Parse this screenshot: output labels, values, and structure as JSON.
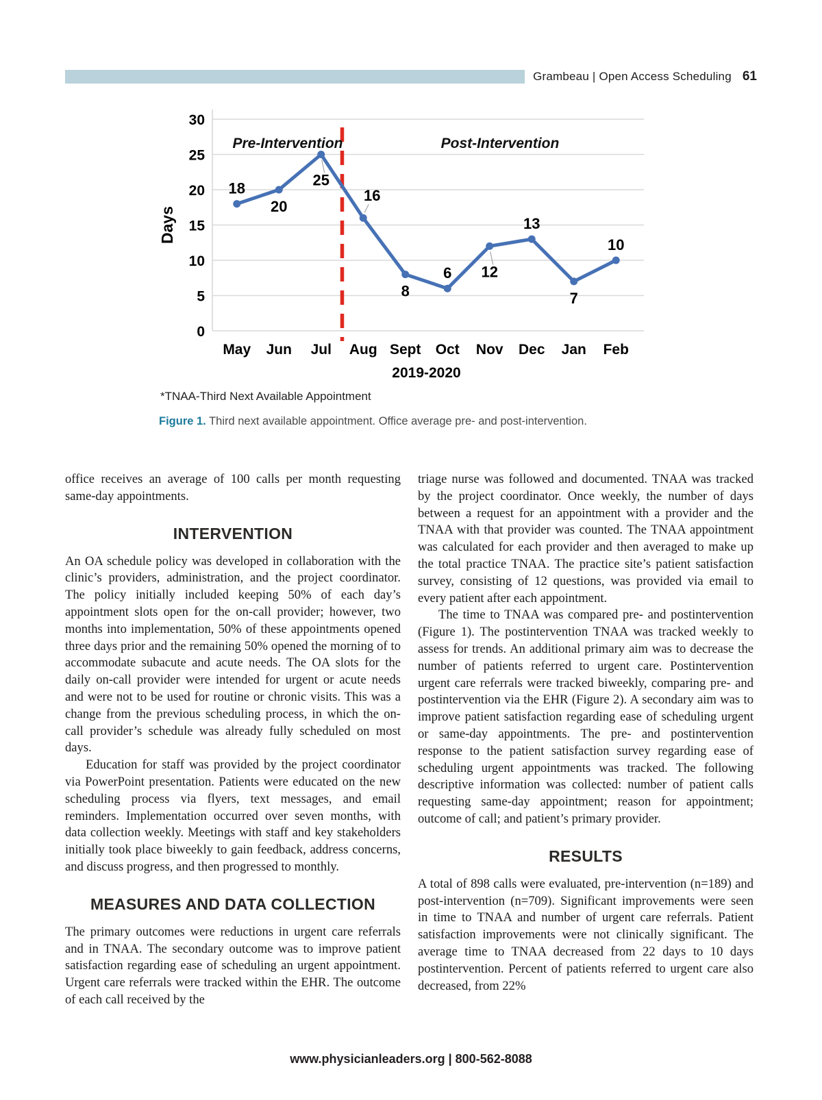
{
  "header": {
    "running_head": "Grambeau | Open Access Scheduling",
    "page_number": "61",
    "bar_color": "#b9d2db"
  },
  "chart_data": {
    "type": "line",
    "categories": [
      "May",
      "Jun",
      "Jul",
      "Aug",
      "Sept",
      "Oct",
      "Nov",
      "Dec",
      "Jan",
      "Feb"
    ],
    "values": [
      18,
      20,
      25,
      16,
      8,
      6,
      12,
      13,
      7,
      10
    ],
    "xlabel": "2019-2020",
    "ylabel": "Days",
    "ylim": [
      0,
      30
    ],
    "ytick_step": 5,
    "grid": true,
    "data_labels": true,
    "label_positions": [
      "above",
      "below",
      "below-leader",
      "above-leader",
      "below",
      "above",
      "below-leader",
      "above",
      "below",
      "above"
    ],
    "line_color": "#4671b5",
    "gridline_color": "#d9d9d9",
    "divider": {
      "after_index": 2,
      "color": "#e02a21",
      "style": "dashed"
    },
    "annotations": [
      {
        "text": "Pre-Intervention",
        "position": "upper-left"
      },
      {
        "text": "Post-Intervention",
        "position": "upper-right"
      }
    ],
    "footnote": "*TNAA-Third Next Available Appointment"
  },
  "figure": {
    "caption_label": "Figure 1.",
    "caption_label_color": "#1d7b9c",
    "caption_text": "Third next available appointment. Office average pre- and post-intervention."
  },
  "article": {
    "columns": [
      {
        "blocks": [
          {
            "type": "p",
            "indent": false,
            "text": "office receives an average of 100 calls per month requesting same-day appointments."
          },
          {
            "type": "h2",
            "text": "INTERVENTION"
          },
          {
            "type": "p",
            "indent": false,
            "text": "An OA schedule policy was developed in collaboration with the clinic’s providers, administration, and the project coordinator. The policy initially included keeping 50% of each day’s appointment slots open for the on-call provider; however, two months into implementation, 50% of these appointments opened three days prior and the remaining 50% opened the morning of to accommodate subacute and acute needs. The OA slots for the daily on-call provider were intended for urgent or acute needs and were not to be used for routine or chronic visits. This was a change from the previous scheduling process, in which the on-call provider’s schedule was already fully scheduled on most days."
          },
          {
            "type": "p",
            "indent": true,
            "text": "Education for staff was provided by the project coordinator via PowerPoint presentation. Patients were educated on the new scheduling process via flyers, text messages, and email reminders. Implementation occurred over seven months, with data collection weekly. Meetings with staff and key stakeholders initially took place biweekly to gain feedback, address concerns, and discuss progress, and then progressed to monthly."
          },
          {
            "type": "h2",
            "text": "MEASURES AND DATA COLLECTION"
          },
          {
            "type": "p",
            "indent": false,
            "text": "The primary outcomes were reductions in urgent care referrals and in TNAA. The secondary outcome was to improve patient satisfaction regarding ease of scheduling an urgent appointment. Urgent care referrals were tracked within the EHR. The outcome of each call received by the"
          }
        ]
      },
      {
        "blocks": [
          {
            "type": "p",
            "indent": false,
            "text": "triage nurse was followed and documented. TNAA was tracked by the project coordinator. Once weekly, the number of days between a request for an appointment with a provider and the TNAA with that provider was counted. The TNAA appointment was calculated for each provider and then averaged to make up the total practice TNAA. The practice site’s patient satisfaction survey, consisting of 12 questions, was provided via email to every patient after each appointment."
          },
          {
            "type": "p",
            "indent": true,
            "text": "The time to TNAA was compared pre- and postintervention (Figure 1). The postintervention TNAA was tracked weekly to assess for trends. An additional primary aim was to decrease the number of patients referred to urgent care. Postintervention urgent care referrals were tracked biweekly, comparing pre- and postintervention via the EHR (Figure 2). A secondary aim was to improve patient satisfaction regarding ease of scheduling urgent or same-day appointments. The pre- and postintervention response to the patient satisfaction survey regarding ease of scheduling urgent appointments was tracked. The following descriptive information was collected: number of patient calls requesting same-day appointment; reason for appointment; outcome of call; and patient’s primary provider."
          },
          {
            "type": "h2",
            "text": "RESULTS"
          },
          {
            "type": "p",
            "indent": false,
            "text": "A total of 898 calls were evaluated, pre-intervention (n=189) and post-intervention (n=709). Significant improvements were seen in time to TNAA and number of urgent care referrals. Patient satisfaction improvements were not clinically significant. The average time to TNAA decreased from 22 days to 10 days postintervention. Percent of patients referred to urgent care also decreased, from 22%"
          }
        ]
      }
    ]
  },
  "footer": {
    "text": "www.physicianleaders.org | 800-562-8088"
  }
}
